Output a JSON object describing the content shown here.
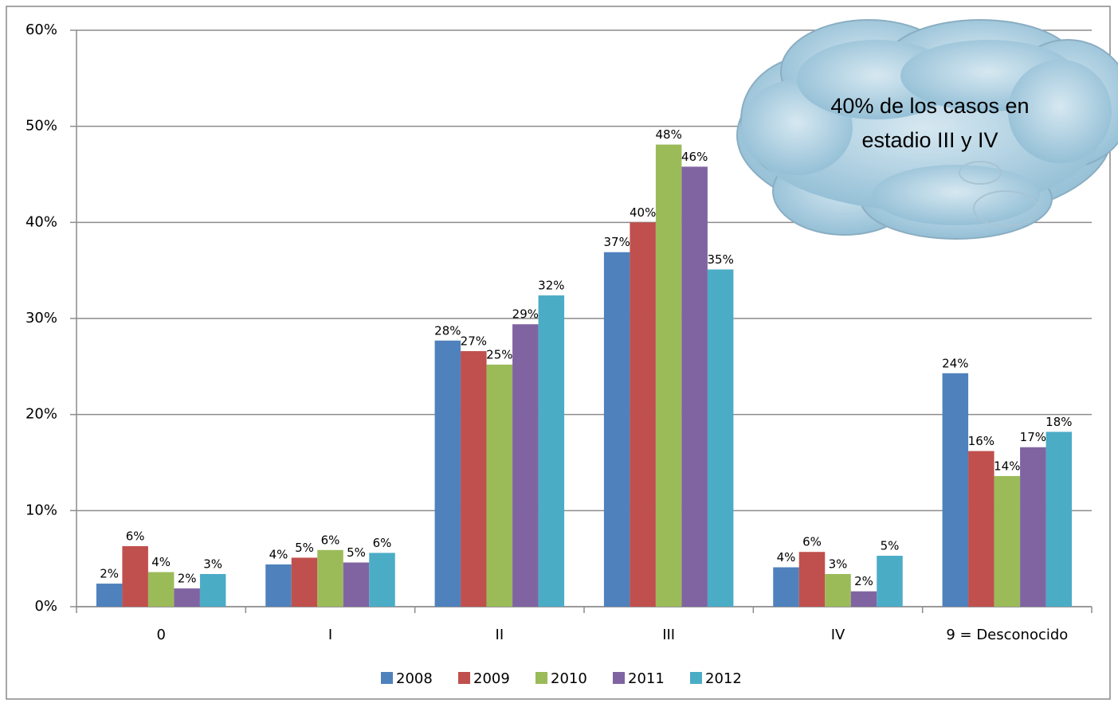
{
  "chart_data": {
    "type": "bar",
    "categories": [
      "0",
      "I",
      "II",
      "III",
      "IV",
      "9 = Desconocido"
    ],
    "series": [
      {
        "name": "2008",
        "color": "#4f81bd",
        "values": [
          2.4,
          4.4,
          27.7,
          36.9,
          4.1,
          24.3
        ],
        "value_labels": [
          "2%",
          "4%",
          "28%",
          "37%",
          "4%",
          "24%"
        ]
      },
      {
        "name": "2009",
        "color": "#c0504d",
        "values": [
          6.3,
          5.1,
          26.6,
          40.0,
          5.7,
          16.2
        ],
        "value_labels": [
          "6%",
          "5%",
          "27%",
          "40%",
          "6%",
          "16%"
        ]
      },
      {
        "name": "2010",
        "color": "#9bbb59",
        "values": [
          3.6,
          5.9,
          25.2,
          48.1,
          3.4,
          13.6
        ],
        "value_labels": [
          "4%",
          "6%",
          "25%",
          "48%",
          "3%",
          "14%"
        ]
      },
      {
        "name": "2011",
        "color": "#8064a2",
        "values": [
          1.9,
          4.6,
          29.4,
          45.8,
          1.6,
          16.6
        ],
        "value_labels": [
          "2%",
          "5%",
          "29%",
          "46%",
          "2%",
          "17%"
        ]
      },
      {
        "name": "2012",
        "color": "#4bacc6",
        "values": [
          3.4,
          5.6,
          32.4,
          35.1,
          5.3,
          18.2
        ],
        "value_labels": [
          "3%",
          "6%",
          "32%",
          "35%",
          "5%",
          "18%"
        ]
      }
    ],
    "ylim": [
      0,
      60
    ],
    "yticks": [
      {
        "value": 0,
        "label": "0%"
      },
      {
        "value": 10,
        "label": "10%"
      },
      {
        "value": 20,
        "label": "20%"
      },
      {
        "value": 30,
        "label": "30%"
      },
      {
        "value": 40,
        "label": "40%"
      },
      {
        "value": 50,
        "label": "50%"
      },
      {
        "value": 60,
        "label": "60%"
      }
    ],
    "grid": true,
    "legend": "bottom",
    "annotation": [
      "40% de los casos en",
      "estadio III y IV"
    ]
  }
}
